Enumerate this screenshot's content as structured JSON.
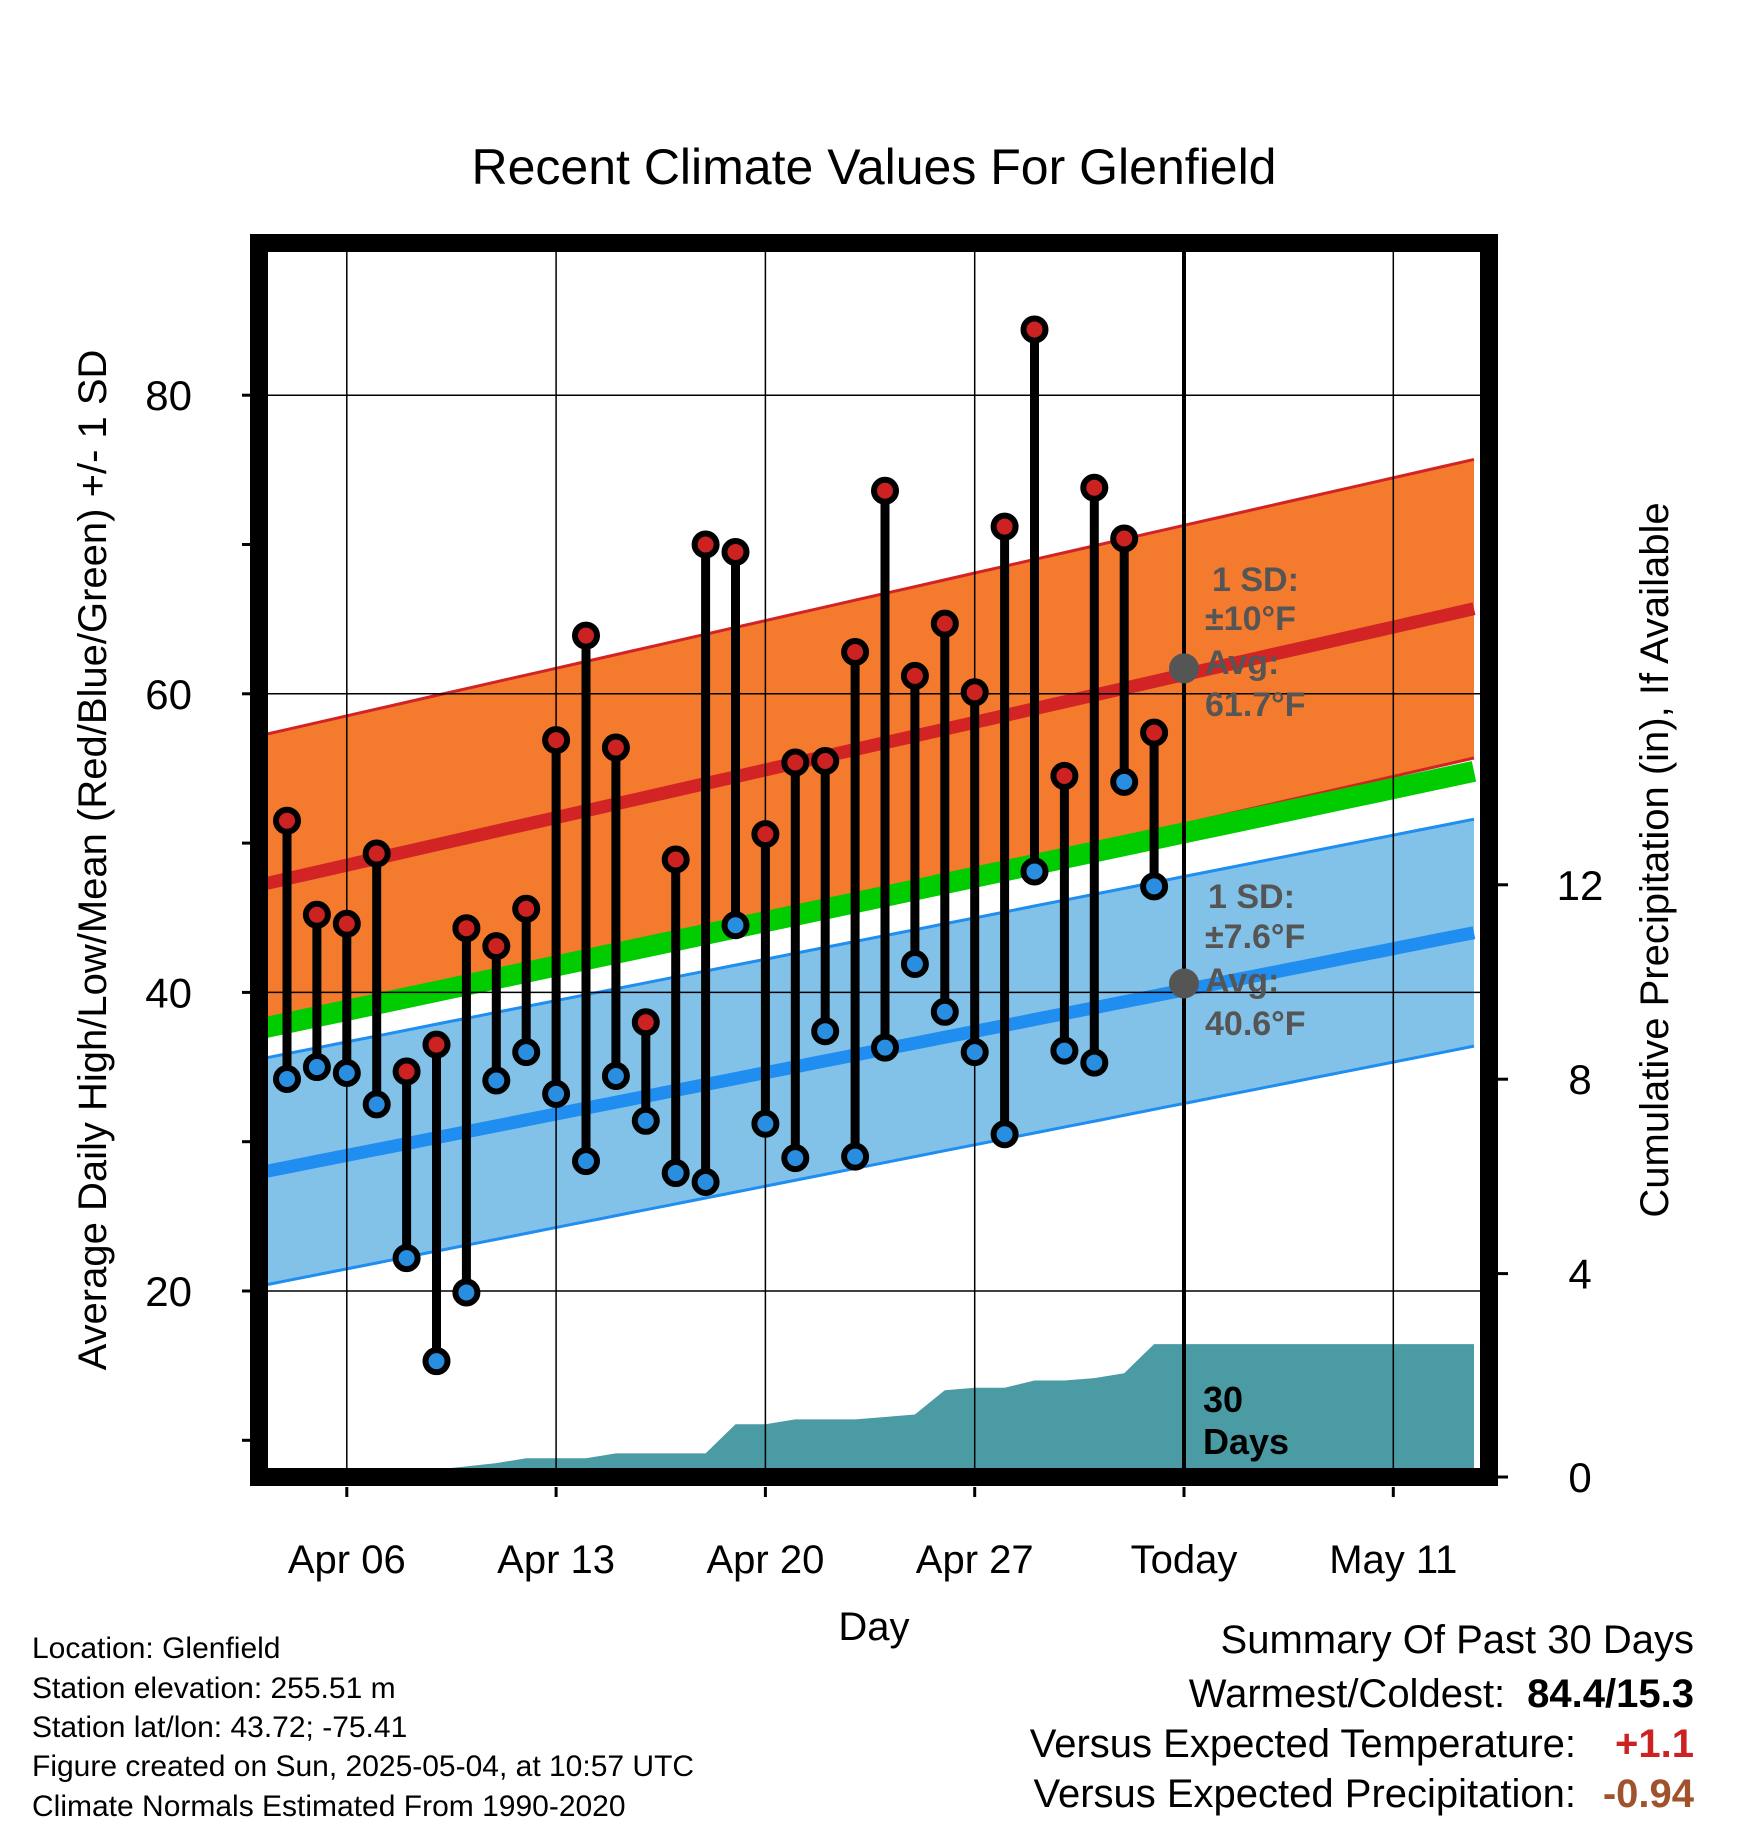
{
  "title": "Recent Climate Values For Glenfield",
  "chart_data": {
    "type": "line",
    "title": "Recent Climate Values For Glenfield",
    "xlabel": "Day",
    "ylabel": "Average Daily High/Low/Mean (Red/Blue/Green) +/- 1 SD",
    "y2label": "Cumulative Precipitation (in), If Available",
    "xlim_days": [
      -32,
      15
    ],
    "ylim": [
      6.5,
      90
    ],
    "y2lim": [
      0,
      24
    ],
    "grid": true,
    "x_ticks": [
      {
        "day": -28,
        "label": "Apr 06"
      },
      {
        "day": -21,
        "label": "Apr 13"
      },
      {
        "day": -14,
        "label": "Apr 20"
      },
      {
        "day": -7,
        "label": "Apr 27"
      },
      {
        "day": 0,
        "label": "Today"
      },
      {
        "day": 7,
        "label": "May 11"
      }
    ],
    "y_ticks": [
      20,
      40,
      60,
      80
    ],
    "y_minor_ticks": [
      10,
      30,
      50,
      70
    ],
    "y2_ticks": [
      0,
      4,
      8,
      12
    ],
    "normals": {
      "high": {
        "start": 46.7,
        "end": 65.7
      },
      "high_sd": 10,
      "low": {
        "start": 27.5,
        "end": 44.0
      },
      "low_sd": 7.6,
      "mean": {
        "start": 37.1,
        "end": 54.8
      },
      "day_range": [
        -32,
        9.7
      ]
    },
    "today_marker": {
      "day": 0,
      "high_avg": 61.7,
      "low_avg": 40.6,
      "high_label": {
        "line1": "1 SD:",
        "line2": "±10°F",
        "line3": "Avg:",
        "line4": "61.7°F"
      },
      "low_label": {
        "line1": "1 SD:",
        "line2": "±7.6°F",
        "line3": "Avg:",
        "line4": "40.6°F"
      },
      "window_label": {
        "line1": "30",
        "line2": "Days"
      }
    },
    "daily": [
      {
        "day": -30,
        "high": 51.5,
        "low": 34.2
      },
      {
        "day": -29,
        "high": 45.2,
        "low": 35.0
      },
      {
        "day": -28,
        "high": 44.6,
        "low": 34.6
      },
      {
        "day": -27,
        "high": 49.3,
        "low": 32.5
      },
      {
        "day": -26,
        "high": 34.7,
        "low": 22.2
      },
      {
        "day": -25,
        "high": 36.5,
        "low": 15.3
      },
      {
        "day": -24,
        "high": 44.3,
        "low": 19.9
      },
      {
        "day": -23,
        "high": 43.1,
        "low": 34.1
      },
      {
        "day": -22,
        "high": 45.6,
        "low": 36.0
      },
      {
        "day": -21,
        "high": 56.9,
        "low": 33.2
      },
      {
        "day": -20,
        "high": 63.9,
        "low": 28.7
      },
      {
        "day": -19,
        "high": 56.4,
        "low": 34.4
      },
      {
        "day": -18,
        "high": 38.0,
        "low": 31.4
      },
      {
        "day": -17,
        "high": 48.9,
        "low": 27.9
      },
      {
        "day": -16,
        "high": 70.0,
        "low": 27.3
      },
      {
        "day": -15,
        "high": 69.5,
        "low": 44.5
      },
      {
        "day": -14,
        "high": 50.6,
        "low": 31.2
      },
      {
        "day": -13,
        "high": 55.4,
        "low": 28.9
      },
      {
        "day": -12,
        "high": 55.5,
        "low": 37.4
      },
      {
        "day": -11,
        "high": 62.8,
        "low": 29.0
      },
      {
        "day": -10,
        "high": 73.6,
        "low": 36.3
      },
      {
        "day": -9,
        "high": 61.2,
        "low": 41.9
      },
      {
        "day": -8,
        "high": 64.7,
        "low": 38.7
      },
      {
        "day": -7,
        "high": 60.1,
        "low": 36.0
      },
      {
        "day": -6,
        "high": 71.2,
        "low": 30.5
      },
      {
        "day": -5,
        "high": 84.4,
        "low": 48.1
      },
      {
        "day": -4,
        "high": 54.5,
        "low": 36.1
      },
      {
        "day": -3,
        "high": 73.8,
        "low": 35.3
      },
      {
        "day": -2,
        "high": 70.4,
        "low": 54.1
      },
      {
        "day": -1,
        "high": 57.4,
        "low": 47.1
      }
    ],
    "precip_cumulative": {
      "days": [
        -31.5,
        -24.5,
        -23,
        -22,
        -21,
        -20,
        -19,
        -18,
        -17,
        -16,
        -15,
        -14,
        -13,
        -12,
        -11,
        -10,
        -9,
        -8,
        -7,
        -6,
        -5,
        -4,
        -3,
        -2,
        -1,
        9.7
      ],
      "values": [
        0,
        0,
        0.1,
        0.2,
        0.2,
        0.2,
        0.3,
        0.3,
        0.3,
        0.3,
        0.9,
        0.9,
        1.0,
        1.0,
        1.0,
        1.05,
        1.1,
        1.6,
        1.65,
        1.65,
        1.8,
        1.8,
        1.85,
        1.95,
        2.55,
        2.55
      ]
    }
  },
  "info": {
    "location": "Location: Glenfield",
    "elevation": "Station elevation: 255.51 m",
    "latlon": "Station lat/lon: 43.72; -75.41",
    "created": "Figure created on Sun, 2025-05-04, at 10:57 UTC",
    "normals": "Climate Normals Estimated From 1990-2020"
  },
  "summary": {
    "heading": "Summary Of Past 30 Days",
    "warmest_label": "Warmest/Coldest:",
    "warmest_value": "84.4/15.3",
    "temp_label": "Versus Expected Temperature:",
    "temp_value": "+1.1",
    "precip_label": "Versus Expected Precipitation:",
    "precip_value": "-0.94"
  },
  "colors": {
    "high_band": "#f47a2e",
    "high_line": "#d22424",
    "low_band": "#82c1e8",
    "low_line": "#1f8ef0",
    "mean_line": "#00cc00",
    "precip_fill": "#4a9ba3",
    "high_dot": "#cc2222",
    "low_dot": "#2a8ee0",
    "annotation": "#555555",
    "temp_value": "#cc2222",
    "precip_value": "#a0522d"
  }
}
